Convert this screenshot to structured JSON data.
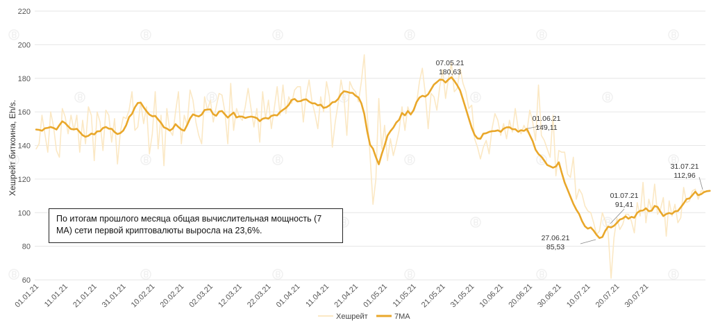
{
  "chart_data": {
    "type": "line",
    "ylabel": "Хешрейт биткоина, Eh/s.",
    "ylim": [
      60,
      220
    ],
    "yticks": [
      "60",
      "80",
      "100",
      "120",
      "140",
      "160",
      "180",
      "200",
      "220"
    ],
    "xtick_labels": [
      "01.01.21",
      "11.01.21",
      "21.01.21",
      "31.01.21",
      "10.02.21",
      "20.02.21",
      "02.03.21",
      "12.03.21",
      "22.03.21",
      "01.04.21",
      "11.04.21",
      "21.04.21",
      "01.05.21",
      "11.05.21",
      "21.05.21",
      "31.05.21",
      "10.06.21",
      "20.06.21",
      "30.06.21",
      "10.07.21",
      "20.07.21",
      "30.07.21"
    ],
    "series": [
      {
        "name": "Хешрейт",
        "color": "#fbe8c4",
        "values": [
          138,
          141,
          158,
          147,
          136,
          160,
          151,
          137,
          133,
          162,
          157,
          147,
          158,
          149,
          158,
          136,
          155,
          141,
          163,
          158,
          131,
          160,
          154,
          137,
          161,
          158,
          142,
          156,
          129,
          148,
          157,
          156,
          161,
          172,
          149,
          151,
          166,
          153,
          163,
          135,
          147,
          172,
          138,
          158,
          128,
          162,
          149,
          146,
          160,
          172,
          141,
          158,
          152,
          173,
          167,
          154,
          146,
          141,
          169,
          161,
          167,
          154,
          163,
          171,
          170,
          160,
          141,
          177,
          149,
          162,
          157,
          155,
          163,
          174,
          162,
          151,
          162,
          142,
          172,
          156,
          167,
          150,
          162,
          175,
          158,
          176,
          159,
          169,
          165,
          173,
          175,
          175,
          154,
          170,
          179,
          166,
          159,
          150,
          169,
          160,
          178,
          169,
          139,
          154,
          165,
          179,
          169,
          146,
          178,
          174,
          172,
          166,
          178,
          194,
          159,
          134,
          105,
          120,
          168,
          138,
          152,
          131,
          144,
          134,
          141,
          149,
          163,
          149,
          163,
          158,
          162,
          165,
          178,
          186,
          171,
          150,
          171,
          169,
          161,
          175,
          185,
          168,
          180,
          189,
          172,
          174,
          186,
          177,
          172,
          162,
          164,
          144,
          139,
          132,
          139,
          143,
          135,
          150,
          159,
          155,
          146,
          153,
          144,
          155,
          148,
          162,
          150,
          147,
          152,
          148,
          161,
          154,
          143,
          176,
          146,
          143,
          138,
          133,
          158,
          122,
          137,
          136,
          136,
          123,
          121,
          133,
          108,
          114,
          111,
          104,
          101,
          100,
          94,
          87,
          89,
          100,
          95,
          88,
          61,
          85,
          97,
          90,
          93,
          99,
          99,
          95,
          88,
          106,
          98,
          118,
          94,
          108,
          101,
          117,
          99,
          102,
          109,
          86,
          107,
          98,
          105,
          94,
          97,
          115,
          106,
          107,
          113,
          114,
          108,
          113,
          113
        ],
        "color_band": "light"
      },
      {
        "name": "7MA",
        "color": "#e9a72a",
        "values": [
          149.5,
          149.3,
          148.8,
          150.2,
          150.5,
          151.0,
          150.4,
          149.5,
          152.1,
          154.4,
          153.3,
          151.4,
          149.8,
          149.6,
          149.9,
          148.0,
          146.1,
          145.2,
          145.8,
          147.1,
          146.6,
          148.4,
          148.5,
          150.4,
          151.0,
          150.0,
          149.9,
          148.0,
          146.8,
          147.4,
          148.9,
          152.1,
          156.9,
          158.8,
          162.7,
          165.3,
          165.5,
          162.8,
          160.4,
          158.4,
          157.4,
          157.6,
          155.5,
          153.5,
          150.8,
          150.1,
          148.9,
          150.0,
          152.7,
          151.0,
          149.5,
          148.8,
          152.2,
          156.1,
          158.5,
          157.8,
          157.3,
          158.4,
          161.1,
          161.4,
          161.5,
          158.6,
          157.7,
          160.2,
          160.5,
          158.5,
          156.6,
          158.2,
          159.6,
          156.7,
          157.3,
          157.2,
          156.4,
          156.9,
          157.2,
          156.9,
          156.3,
          154.5,
          155.9,
          156.4,
          156.0,
          157.6,
          158.1,
          157.9,
          159.9,
          161.2,
          162.4,
          164.2,
          167.1,
          167.7,
          166.2,
          166.4,
          167.2,
          167.5,
          166.1,
          165.1,
          165.1,
          163.9,
          164.3,
          162.4,
          162.8,
          163.9,
          165.7,
          166.0,
          167.7,
          170.6,
          172.3,
          172.0,
          171.4,
          171.3,
          169.6,
          168.6,
          165.1,
          158.8,
          148.5,
          140.4,
          138.1,
          133.1,
          128.8,
          134.8,
          140.0,
          145.8,
          148.5,
          150.6,
          153.6,
          155.3,
          159.4,
          157.9,
          160.5,
          158.5,
          161.0,
          165.8,
          168.5,
          169.6,
          169.1,
          170.5,
          173.4,
          176.3,
          177.7,
          179.2,
          179.1,
          177.5,
          179.3,
          180.6,
          178.5,
          175.9,
          172.8,
          167.4,
          161.8,
          156.1,
          150.6,
          146.3,
          144.2,
          144.0,
          147.0,
          147.3,
          148.1,
          148.5,
          148.6,
          149.0,
          148.2,
          150.0,
          150.8,
          150.9,
          149.7,
          149.7,
          148.2,
          149.1,
          148.7,
          149.9,
          146.2,
          142.6,
          137.5,
          134.9,
          133.3,
          131.0,
          128.4,
          127.6,
          126.8,
          127.5,
          130.0,
          123.8,
          118.0,
          113.8,
          109.5,
          105.3,
          101.9,
          99.2,
          95.0,
          91.9,
          90.5,
          91.2,
          89.3,
          86.8,
          84.9,
          85.5,
          89.2,
          91.7,
          91.2,
          92.2,
          93.9,
          95.9,
          96.5,
          97.8,
          96.4,
          97.5,
          97.0,
          99.9,
          101.1,
          101.3,
          102.6,
          100.9,
          101.2,
          104.0,
          103.4,
          100.5,
          98.0,
          99.2,
          99.8,
          99.3,
          100.8,
          101.0,
          103.2,
          105.5,
          108.1,
          108.5,
          110.4,
          112.5,
          110.4,
          111.0,
          112.2,
          112.8,
          113.0
        ]
      }
    ],
    "annotations": [
      {
        "date": "07.05.21",
        "value": "180,63"
      },
      {
        "date": "01.06.21",
        "value": "149,11"
      },
      {
        "date": "27.06.21",
        "value": "85,53"
      },
      {
        "date": "01.07.21",
        "value": "91,41"
      },
      {
        "date": "31.07.21",
        "value": "112,96"
      }
    ],
    "legend": {
      "position": "bottom-center"
    }
  },
  "note": "По итогам прошлого месяца общая вычислительная мощность (7 MA) сети первой криптовалюты выросла на 23,6%."
}
